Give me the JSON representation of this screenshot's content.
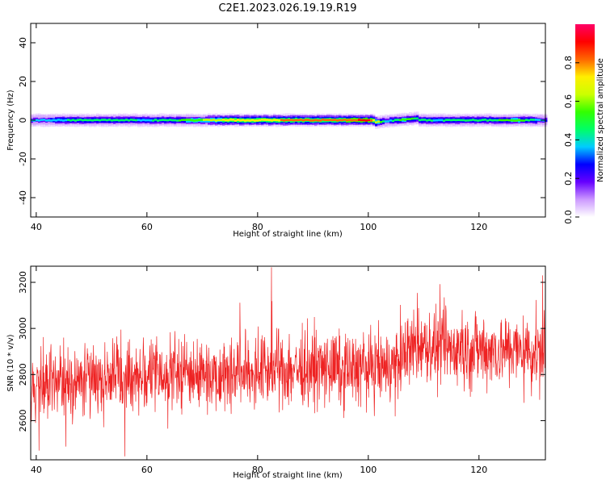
{
  "title": "C2E1.2023.026.19.19.R19",
  "chart_data": [
    {
      "type": "heatmap",
      "xlabel": "Height of straight line (km)",
      "ylabel": "Frequency (Hz)",
      "xlim": [
        39,
        132
      ],
      "ylim": [
        -50,
        50
      ],
      "xticks": [
        40,
        60,
        80,
        100,
        120
      ],
      "yticks": [
        -40,
        -20,
        0,
        20,
        40
      ],
      "colorbar": {
        "label": "Normalized spectral amplitude",
        "range": [
          0,
          1
        ],
        "ticks": [
          "0.0",
          "0.2",
          "0.4",
          "0.6",
          "0.8"
        ],
        "colormap": [
          "#ffffff",
          "#cc99ff",
          "#6600ff",
          "#0000ff",
          "#00ccff",
          "#00ff66",
          "#33ff00",
          "#ccff00",
          "#ffee00",
          "#ff6600",
          "#ff0000",
          "#ff0066"
        ]
      },
      "band": {
        "center_freq_hz": 0,
        "profile": [
          {
            "x": 39,
            "amp": 0.35
          },
          {
            "x": 50,
            "amp": 0.45
          },
          {
            "x": 60,
            "amp": 0.4
          },
          {
            "x": 68,
            "amp": 0.55
          },
          {
            "x": 75,
            "amp": 0.72
          },
          {
            "x": 85,
            "amp": 0.78
          },
          {
            "x": 95,
            "amp": 0.82
          },
          {
            "x": 100,
            "amp": 0.9
          },
          {
            "x": 103,
            "amp": 0.35
          },
          {
            "x": 106,
            "amp": 0.55
          },
          {
            "x": 112,
            "amp": 0.4
          },
          {
            "x": 120,
            "amp": 0.45
          },
          {
            "x": 127,
            "amp": 0.55
          },
          {
            "x": 132,
            "amp": 0.3
          }
        ]
      }
    },
    {
      "type": "line",
      "xlabel": "Height of straight line (km)",
      "ylabel": "SNR (10 * v/v)",
      "xlim": [
        39,
        132
      ],
      "ylim": [
        2430,
        3270
      ],
      "xticks": [
        40,
        60,
        80,
        100,
        120
      ],
      "yticks": [
        2600,
        2800,
        3000,
        3200
      ],
      "series": [
        {
          "color": "#ee2222",
          "mean_trend": [
            {
              "x": 39,
              "y": 2740
            },
            {
              "x": 50,
              "y": 2790
            },
            {
              "x": 60,
              "y": 2800
            },
            {
              "x": 80,
              "y": 2820
            },
            {
              "x": 100,
              "y": 2830
            },
            {
              "x": 105,
              "y": 2840
            },
            {
              "x": 108,
              "y": 2920
            },
            {
              "x": 132,
              "y": 2900
            }
          ],
          "spread": 230,
          "extremes": [
            {
              "x": 82.5,
              "y": 3265
            },
            {
              "x": 56,
              "y": 2445
            },
            {
              "x": 40.5,
              "y": 2470
            },
            {
              "x": 131.5,
              "y": 3230
            }
          ]
        }
      ]
    }
  ]
}
